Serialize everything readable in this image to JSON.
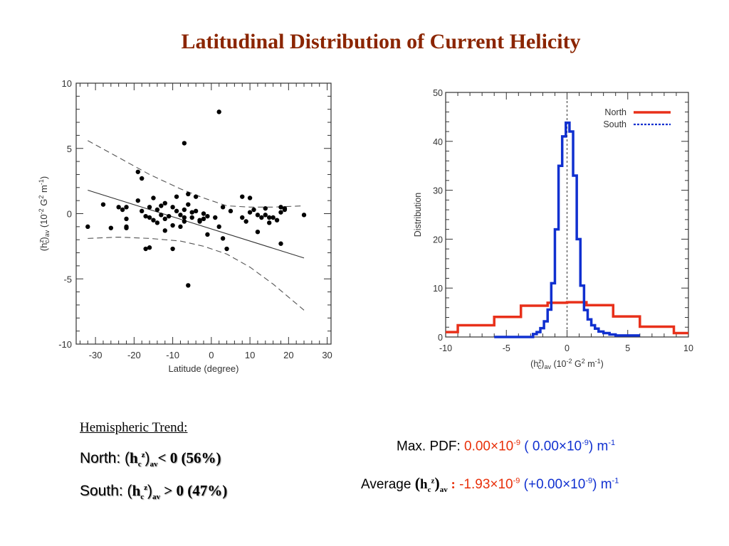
{
  "title": "Latitudinal Distribution of Current Helicity",
  "chart_data": [
    {
      "type": "scatter",
      "xlabel": "Latitude (degree)",
      "ylabel_parts": [
        "(h",
        "z",
        "c",
        ")",
        "av",
        " (10",
        "-2",
        " G",
        "2",
        " m",
        "-1",
        ")"
      ],
      "xlim": [
        -35,
        31
      ],
      "ylim": [
        -10,
        10
      ],
      "xticks": [
        -30,
        -20,
        -10,
        0,
        10,
        20,
        30
      ],
      "yticks": [
        -10,
        -5,
        0,
        5,
        10
      ],
      "points": [
        [
          -32,
          -1.0
        ],
        [
          -28,
          0.7
        ],
        [
          -26,
          -1.1
        ],
        [
          -24,
          0.5
        ],
        [
          -23,
          0.3
        ],
        [
          -22,
          0.5
        ],
        [
          -22,
          -0.4
        ],
        [
          -22,
          -1.0
        ],
        [
          -22,
          -1.1
        ],
        [
          -19,
          3.2
        ],
        [
          -18,
          2.7
        ],
        [
          -19,
          1.0
        ],
        [
          -18,
          0.2
        ],
        [
          -17,
          -0.2
        ],
        [
          -16,
          0.5
        ],
        [
          -16,
          -0.3
        ],
        [
          -15,
          1.2
        ],
        [
          -15,
          -0.5
        ],
        [
          -14,
          0.3
        ],
        [
          -14,
          -0.7
        ],
        [
          -13,
          0.6
        ],
        [
          -13,
          -0.1
        ],
        [
          -12,
          0.8
        ],
        [
          -12,
          -0.4
        ],
        [
          -12,
          -1.3
        ],
        [
          -11,
          -0.2
        ],
        [
          -10,
          0.5
        ],
        [
          -10,
          -0.9
        ],
        [
          -9,
          0.2
        ],
        [
          -9,
          1.3
        ],
        [
          -8,
          -0.1
        ],
        [
          -8,
          -1.0
        ],
        [
          -7,
          0.3
        ],
        [
          -7,
          -0.3
        ],
        [
          -7,
          -0.6
        ],
        [
          -6,
          1.5
        ],
        [
          -6,
          0.7
        ],
        [
          -5,
          0.1
        ],
        [
          -5,
          -0.3
        ],
        [
          -4,
          1.3
        ],
        [
          -4,
          0.2
        ],
        [
          -3,
          -0.5
        ],
        [
          -3,
          -0.6
        ],
        [
          -2,
          0.0
        ],
        [
          -2,
          -0.4
        ],
        [
          -1,
          -0.2
        ],
        [
          -1,
          -1.6
        ],
        [
          1,
          -0.3
        ],
        [
          2,
          -1.0
        ],
        [
          3,
          0.5
        ],
        [
          3,
          -1.9
        ],
        [
          4,
          -2.7
        ],
        [
          5,
          0.2
        ],
        [
          8,
          1.3
        ],
        [
          8,
          -0.3
        ],
        [
          9,
          -0.6
        ],
        [
          10,
          1.2
        ],
        [
          10,
          0.1
        ],
        [
          11,
          0.3
        ],
        [
          12,
          -0.1
        ],
        [
          12,
          -1.4
        ],
        [
          13,
          -0.3
        ],
        [
          14,
          0.4
        ],
        [
          14,
          -0.1
        ],
        [
          15,
          -0.3
        ],
        [
          15,
          -0.7
        ],
        [
          16,
          -0.3
        ],
        [
          17,
          -0.5
        ],
        [
          18,
          0.5
        ],
        [
          18,
          0.1
        ],
        [
          18,
          -2.3
        ],
        [
          19,
          0.4
        ],
        [
          19,
          0.3
        ],
        [
          24,
          -0.1
        ],
        [
          -10,
          -2.7
        ],
        [
          -16,
          -2.6
        ],
        [
          -7,
          5.4
        ],
        [
          -6,
          -5.5
        ],
        [
          2,
          7.8
        ],
        [
          -17,
          -2.7
        ]
      ],
      "fit_line": [
        [
          -32,
          1.8
        ],
        [
          24,
          -3.4
        ]
      ],
      "confidence_upper": [
        [
          -32,
          5.6
        ],
        [
          -24,
          4.3
        ],
        [
          -16,
          3.0
        ],
        [
          -8,
          1.9
        ],
        [
          -2,
          1.2
        ],
        [
          4,
          0.6
        ],
        [
          10,
          0.5
        ],
        [
          16,
          0.5
        ],
        [
          24,
          0.6
        ]
      ],
      "confidence_lower": [
        [
          -32,
          -1.9
        ],
        [
          -24,
          -1.8
        ],
        [
          -16,
          -1.9
        ],
        [
          -8,
          -2.1
        ],
        [
          -2,
          -2.5
        ],
        [
          4,
          -3.1
        ],
        [
          10,
          -4.1
        ],
        [
          16,
          -5.4
        ],
        [
          24,
          -7.4
        ]
      ]
    },
    {
      "type": "line",
      "ylabel": "Distribution",
      "xlabel_parts": [
        "(h",
        "z",
        "c",
        ")",
        "av",
        " (10",
        "-2",
        " G",
        "2",
        " m",
        "-1",
        ")"
      ],
      "xlim": [
        -10,
        10
      ],
      "ylim": [
        0,
        50
      ],
      "xticks": [
        -10,
        -5,
        0,
        5,
        10
      ],
      "yticks": [
        0,
        10,
        20,
        30,
        40,
        50
      ],
      "legend_position": "top-right",
      "series": [
        {
          "name": "North",
          "color": "#E8301A",
          "style": "solid",
          "step_edges": [
            -10,
            -9,
            -6,
            -3.8,
            -1.6,
            0,
            1.6,
            3.8,
            6,
            8.8,
            10
          ],
          "values": [
            1.0,
            2.4,
            4.1,
            6.4,
            7.0,
            7.1,
            6.5,
            4.2,
            2.1,
            0.8
          ]
        },
        {
          "name": "South",
          "color": "#1030D0",
          "style": "solid",
          "step_edges": [
            -6,
            -2.8,
            -2.5,
            -2.2,
            -1.9,
            -1.6,
            -1.3,
            -1.0,
            -0.7,
            -0.4,
            -0.1,
            0.2,
            0.5,
            0.8,
            1.1,
            1.4,
            1.7,
            2.0,
            2.3,
            2.6,
            3.0,
            3.5,
            4.0,
            6.0
          ],
          "values": [
            0.0,
            0.6,
            1.0,
            1.8,
            3.2,
            5.6,
            11.0,
            22.0,
            35.0,
            41.0,
            43.8,
            42.0,
            33.0,
            20.0,
            10.5,
            5.5,
            3.6,
            2.4,
            1.7,
            1.1,
            0.8,
            0.5,
            0.3
          ]
        }
      ],
      "reference_line_x": 0
    }
  ],
  "trend": {
    "heading": "Hemispheric Trend:",
    "north_label": "North: (",
    "north_h": "h",
    "north_sub_c": "c",
    "north_sup_z": "z",
    "north_close": ")",
    "north_sub_av": "av",
    "north_rel": "< 0  (56%)",
    "south_label": "South",
    "south_colon": ": (",
    "south_h": "h",
    "south_sub_c": "c",
    "south_sup_z": "z",
    "south_close": ")",
    "south_sub_av": "av",
    "south_rel": " > 0  (47%)"
  },
  "stats": {
    "maxpdf_label": "Max. PDF: ",
    "maxpdf_north_base": "0.00×10",
    "maxpdf_north_exp": "-9",
    "maxpdf_south_open": " ( 0.00×10",
    "maxpdf_south_exp": "-9",
    "maxpdf_unit": ") m",
    "maxpdf_unit_exp": "-1",
    "avg_label": "Average ",
    "avg_open": "(",
    "avg_h": "h",
    "avg_sub_c": "c",
    "avg_sup_z": "z",
    "avg_close": ")",
    "avg_sub_av": "av",
    "avg_colon": " :",
    "avg_north_base": " -1.93×10",
    "avg_north_exp": "-9",
    "avg_south_open": " (+0.00×10",
    "avg_south_exp": "-9",
    "avg_unit": ") m",
    "avg_unit_exp": "-1"
  }
}
